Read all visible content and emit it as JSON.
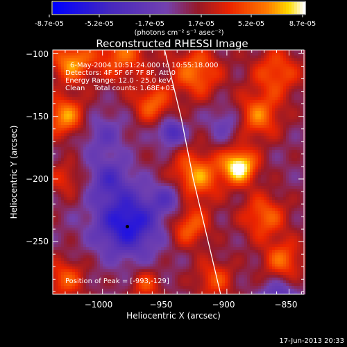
{
  "colorbar": {
    "tick_labels": [
      "-8.7e-05",
      "-5.2e-05",
      "-1.7e-05",
      "1.7e-05",
      "5.2e-05",
      "8.7e-05"
    ],
    "min": -8.7e-05,
    "max": 8.7e-05,
    "units": "(photons cm⁻² s⁻¹ asec⁻²)"
  },
  "chart_data": {
    "type": "heatmap",
    "title": "Reconstructed RHESSI Image",
    "xlabel": "Heliocentric X (arcsec)",
    "ylabel": "Heliocentric Y (arcsec)",
    "xlim": [
      -1040,
      -838
    ],
    "ylim": [
      -292,
      -97
    ],
    "xticks": [
      -1000,
      -950,
      -900,
      -850
    ],
    "yticks": [
      -100,
      -150,
      -200,
      -250
    ],
    "xtick_labels": [
      "−1000",
      "−950",
      "−900",
      "−850"
    ],
    "ytick_labels": [
      "−100",
      "−150",
      "−200",
      "−250"
    ],
    "colormap": "blue-purple-red-yellow-white",
    "info_lines": [
      "6-May-2004 10:51:24.000 to 10:55:18.000",
      "Detectors: 4F 5F 6F 7F 8F, Att 0",
      "Energy Range: 12.0 - 25.0 keV",
      "Clean    Total counts: 1.68E+03"
    ],
    "peak_label": "Position of Peak = [-993,-129]",
    "marked_point": [
      -980,
      -238
    ],
    "limb_points": [
      [
        -950,
        -97
      ],
      [
        -937,
        -150
      ],
      [
        -927,
        -200
      ],
      [
        -915,
        -250
      ],
      [
        -905,
        -292
      ]
    ],
    "blobs": [
      {
        "x": -1025,
        "y": -107,
        "r": 16,
        "v": 0.7
      },
      {
        "x": -985,
        "y": -100,
        "r": 22,
        "v": 0.55
      },
      {
        "x": -1030,
        "y": -150,
        "r": 16,
        "v": 0.7
      },
      {
        "x": -960,
        "y": -140,
        "r": 15,
        "v": 0.55
      },
      {
        "x": -925,
        "y": -115,
        "r": 20,
        "v": 0.6
      },
      {
        "x": -860,
        "y": -115,
        "r": 20,
        "v": 0.5
      },
      {
        "x": -875,
        "y": -150,
        "r": 18,
        "v": 0.6
      },
      {
        "x": -890,
        "y": -190,
        "r": 14,
        "v": 1.0
      },
      {
        "x": -925,
        "y": -198,
        "r": 20,
        "v": 0.7
      },
      {
        "x": -930,
        "y": -238,
        "r": 16,
        "v": 0.55
      },
      {
        "x": -870,
        "y": -230,
        "r": 18,
        "v": 0.55
      },
      {
        "x": -855,
        "y": -265,
        "r": 16,
        "v": 0.55
      },
      {
        "x": -1030,
        "y": -200,
        "r": 14,
        "v": 0.35
      },
      {
        "x": -1030,
        "y": -280,
        "r": 16,
        "v": 0.5
      },
      {
        "x": -965,
        "y": -285,
        "r": 12,
        "v": 0.45
      },
      {
        "x": -910,
        "y": -280,
        "r": 16,
        "v": 0.45
      },
      {
        "x": -980,
        "y": -235,
        "r": 25,
        "v": -0.85
      },
      {
        "x": -945,
        "y": -215,
        "r": 14,
        "v": -0.4
      },
      {
        "x": -945,
        "y": -163,
        "r": 10,
        "v": -0.6
      },
      {
        "x": -1000,
        "y": -165,
        "r": 18,
        "v": -0.3
      },
      {
        "x": -995,
        "y": -200,
        "r": 16,
        "v": -0.45
      },
      {
        "x": -858,
        "y": -295,
        "r": 14,
        "v": -0.45
      },
      {
        "x": -900,
        "y": -155,
        "r": 14,
        "v": -0.3
      }
    ]
  },
  "timestamp": "17-Jun-2013 20:33"
}
